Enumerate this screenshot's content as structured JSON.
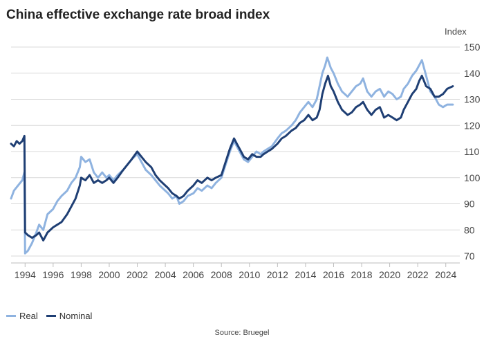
{
  "chart_data": {
    "type": "line",
    "title": "China effective exchange rate broad index",
    "ylabel": "Index",
    "xlabel": "",
    "source": "Source: Bruegel",
    "ylim": [
      70,
      150
    ],
    "xlim": [
      1993.0,
      2025.0
    ],
    "yticks": [
      70,
      80,
      90,
      100,
      110,
      120,
      130,
      140,
      150
    ],
    "xticks": [
      1994,
      1996,
      1998,
      2000,
      2002,
      2004,
      2006,
      2008,
      2010,
      2012,
      2014,
      2016,
      2018,
      2020,
      2022,
      2024
    ],
    "grid": true,
    "legend_position": "bottom-left",
    "series": [
      {
        "name": "Real",
        "color": "#8fb3e0",
        "points": [
          [
            1993.0,
            92
          ],
          [
            1993.2,
            95
          ],
          [
            1993.5,
            97
          ],
          [
            1993.8,
            99
          ],
          [
            1993.95,
            102
          ],
          [
            1994.0,
            71
          ],
          [
            1994.2,
            72
          ],
          [
            1994.5,
            75
          ],
          [
            1994.8,
            79
          ],
          [
            1995.0,
            82
          ],
          [
            1995.3,
            80
          ],
          [
            1995.6,
            86
          ],
          [
            1996.0,
            88
          ],
          [
            1996.3,
            91
          ],
          [
            1996.6,
            93
          ],
          [
            1997.0,
            95
          ],
          [
            1997.3,
            98
          ],
          [
            1997.6,
            100
          ],
          [
            1997.9,
            104
          ],
          [
            1998.0,
            108
          ],
          [
            1998.3,
            106
          ],
          [
            1998.6,
            107
          ],
          [
            1998.9,
            102
          ],
          [
            1999.2,
            100
          ],
          [
            1999.5,
            102
          ],
          [
            1999.8,
            100
          ],
          [
            2000.0,
            101
          ],
          [
            2000.3,
            99
          ],
          [
            2000.6,
            101
          ],
          [
            2001.0,
            103
          ],
          [
            2001.3,
            105
          ],
          [
            2001.6,
            107
          ],
          [
            2002.0,
            109
          ],
          [
            2002.3,
            106
          ],
          [
            2002.6,
            103
          ],
          [
            2003.0,
            101
          ],
          [
            2003.3,
            99
          ],
          [
            2003.6,
            97
          ],
          [
            2004.0,
            95
          ],
          [
            2004.2,
            94
          ],
          [
            2004.5,
            92
          ],
          [
            2004.8,
            93
          ],
          [
            2005.0,
            90
          ],
          [
            2005.3,
            91
          ],
          [
            2005.6,
            93
          ],
          [
            2006.0,
            94
          ],
          [
            2006.3,
            96
          ],
          [
            2006.6,
            95
          ],
          [
            2007.0,
            97
          ],
          [
            2007.3,
            96
          ],
          [
            2007.6,
            98
          ],
          [
            2008.0,
            100
          ],
          [
            2008.3,
            105
          ],
          [
            2008.6,
            110
          ],
          [
            2008.9,
            114
          ],
          [
            2009.1,
            112
          ],
          [
            2009.3,
            110
          ],
          [
            2009.6,
            107
          ],
          [
            2009.9,
            106
          ],
          [
            2010.2,
            108
          ],
          [
            2010.5,
            110
          ],
          [
            2010.8,
            109
          ],
          [
            2011.0,
            110
          ],
          [
            2011.3,
            111
          ],
          [
            2011.6,
            112
          ],
          [
            2012.0,
            115
          ],
          [
            2012.3,
            117
          ],
          [
            2012.6,
            118
          ],
          [
            2013.0,
            120
          ],
          [
            2013.3,
            122
          ],
          [
            2013.6,
            125
          ],
          [
            2013.9,
            127
          ],
          [
            2014.2,
            129
          ],
          [
            2014.5,
            127
          ],
          [
            2014.8,
            130
          ],
          [
            2015.0,
            135
          ],
          [
            2015.2,
            140
          ],
          [
            2015.4,
            143
          ],
          [
            2015.55,
            146
          ],
          [
            2015.8,
            142
          ],
          [
            2016.0,
            140
          ],
          [
            2016.3,
            136
          ],
          [
            2016.6,
            133
          ],
          [
            2017.0,
            131
          ],
          [
            2017.3,
            133
          ],
          [
            2017.6,
            135
          ],
          [
            2017.9,
            136
          ],
          [
            2018.1,
            138
          ],
          [
            2018.4,
            133
          ],
          [
            2018.7,
            131
          ],
          [
            2019.0,
            133
          ],
          [
            2019.3,
            134
          ],
          [
            2019.6,
            131
          ],
          [
            2019.9,
            133
          ],
          [
            2020.2,
            132
          ],
          [
            2020.5,
            130
          ],
          [
            2020.8,
            131
          ],
          [
            2021.0,
            134
          ],
          [
            2021.3,
            136
          ],
          [
            2021.6,
            139
          ],
          [
            2021.9,
            141
          ],
          [
            2022.1,
            143
          ],
          [
            2022.3,
            145
          ],
          [
            2022.6,
            139
          ],
          [
            2022.9,
            133
          ],
          [
            2023.2,
            131
          ],
          [
            2023.5,
            128
          ],
          [
            2023.8,
            127
          ],
          [
            2024.1,
            128
          ],
          [
            2024.5,
            128
          ]
        ]
      },
      {
        "name": "Nominal",
        "color": "#1f3f74",
        "points": [
          [
            1993.0,
            113
          ],
          [
            1993.2,
            112
          ],
          [
            1993.4,
            114
          ],
          [
            1993.6,
            113
          ],
          [
            1993.8,
            114
          ],
          [
            1993.95,
            116
          ],
          [
            1994.0,
            79
          ],
          [
            1994.2,
            78
          ],
          [
            1994.5,
            77
          ],
          [
            1994.8,
            78
          ],
          [
            1995.0,
            79
          ],
          [
            1995.3,
            76
          ],
          [
            1995.6,
            79
          ],
          [
            1996.0,
            81
          ],
          [
            1996.3,
            82
          ],
          [
            1996.6,
            83
          ],
          [
            1997.0,
            86
          ],
          [
            1997.3,
            89
          ],
          [
            1997.6,
            92
          ],
          [
            1997.9,
            97
          ],
          [
            1998.0,
            100
          ],
          [
            1998.3,
            99
          ],
          [
            1998.6,
            101
          ],
          [
            1998.9,
            98
          ],
          [
            1999.2,
            99
          ],
          [
            1999.5,
            98
          ],
          [
            1999.8,
            99
          ],
          [
            2000.0,
            100
          ],
          [
            2000.3,
            98
          ],
          [
            2000.6,
            100
          ],
          [
            2001.0,
            103
          ],
          [
            2001.3,
            105
          ],
          [
            2001.6,
            107
          ],
          [
            2002.0,
            110
          ],
          [
            2002.3,
            108
          ],
          [
            2002.6,
            106
          ],
          [
            2003.0,
            104
          ],
          [
            2003.3,
            101
          ],
          [
            2003.6,
            99
          ],
          [
            2004.0,
            97
          ],
          [
            2004.2,
            96
          ],
          [
            2004.5,
            94
          ],
          [
            2004.8,
            93
          ],
          [
            2005.0,
            92
          ],
          [
            2005.3,
            93
          ],
          [
            2005.6,
            95
          ],
          [
            2006.0,
            97
          ],
          [
            2006.3,
            99
          ],
          [
            2006.6,
            98
          ],
          [
            2007.0,
            100
          ],
          [
            2007.3,
            99
          ],
          [
            2007.6,
            100
          ],
          [
            2008.0,
            101
          ],
          [
            2008.3,
            106
          ],
          [
            2008.6,
            111
          ],
          [
            2008.9,
            115
          ],
          [
            2009.1,
            113
          ],
          [
            2009.3,
            111
          ],
          [
            2009.6,
            108
          ],
          [
            2009.9,
            107
          ],
          [
            2010.2,
            109
          ],
          [
            2010.5,
            108
          ],
          [
            2010.8,
            108
          ],
          [
            2011.0,
            109
          ],
          [
            2011.3,
            110
          ],
          [
            2011.6,
            111
          ],
          [
            2012.0,
            113
          ],
          [
            2012.3,
            115
          ],
          [
            2012.6,
            116
          ],
          [
            2013.0,
            118
          ],
          [
            2013.3,
            119
          ],
          [
            2013.6,
            121
          ],
          [
            2013.9,
            122
          ],
          [
            2014.2,
            124
          ],
          [
            2014.5,
            122
          ],
          [
            2014.8,
            123
          ],
          [
            2015.0,
            126
          ],
          [
            2015.2,
            132
          ],
          [
            2015.4,
            136
          ],
          [
            2015.6,
            139
          ],
          [
            2015.8,
            135
          ],
          [
            2016.0,
            133
          ],
          [
            2016.3,
            129
          ],
          [
            2016.6,
            126
          ],
          [
            2017.0,
            124
          ],
          [
            2017.3,
            125
          ],
          [
            2017.6,
            127
          ],
          [
            2017.9,
            128
          ],
          [
            2018.1,
            129
          ],
          [
            2018.4,
            126
          ],
          [
            2018.7,
            124
          ],
          [
            2019.0,
            126
          ],
          [
            2019.3,
            127
          ],
          [
            2019.6,
            123
          ],
          [
            2019.9,
            124
          ],
          [
            2020.2,
            123
          ],
          [
            2020.5,
            122
          ],
          [
            2020.8,
            123
          ],
          [
            2021.0,
            126
          ],
          [
            2021.3,
            129
          ],
          [
            2021.6,
            132
          ],
          [
            2021.9,
            134
          ],
          [
            2022.1,
            137
          ],
          [
            2022.3,
            139
          ],
          [
            2022.6,
            135
          ],
          [
            2022.9,
            134
          ],
          [
            2023.2,
            131
          ],
          [
            2023.5,
            131
          ],
          [
            2023.8,
            132
          ],
          [
            2024.1,
            134
          ],
          [
            2024.5,
            135
          ]
        ]
      }
    ]
  }
}
